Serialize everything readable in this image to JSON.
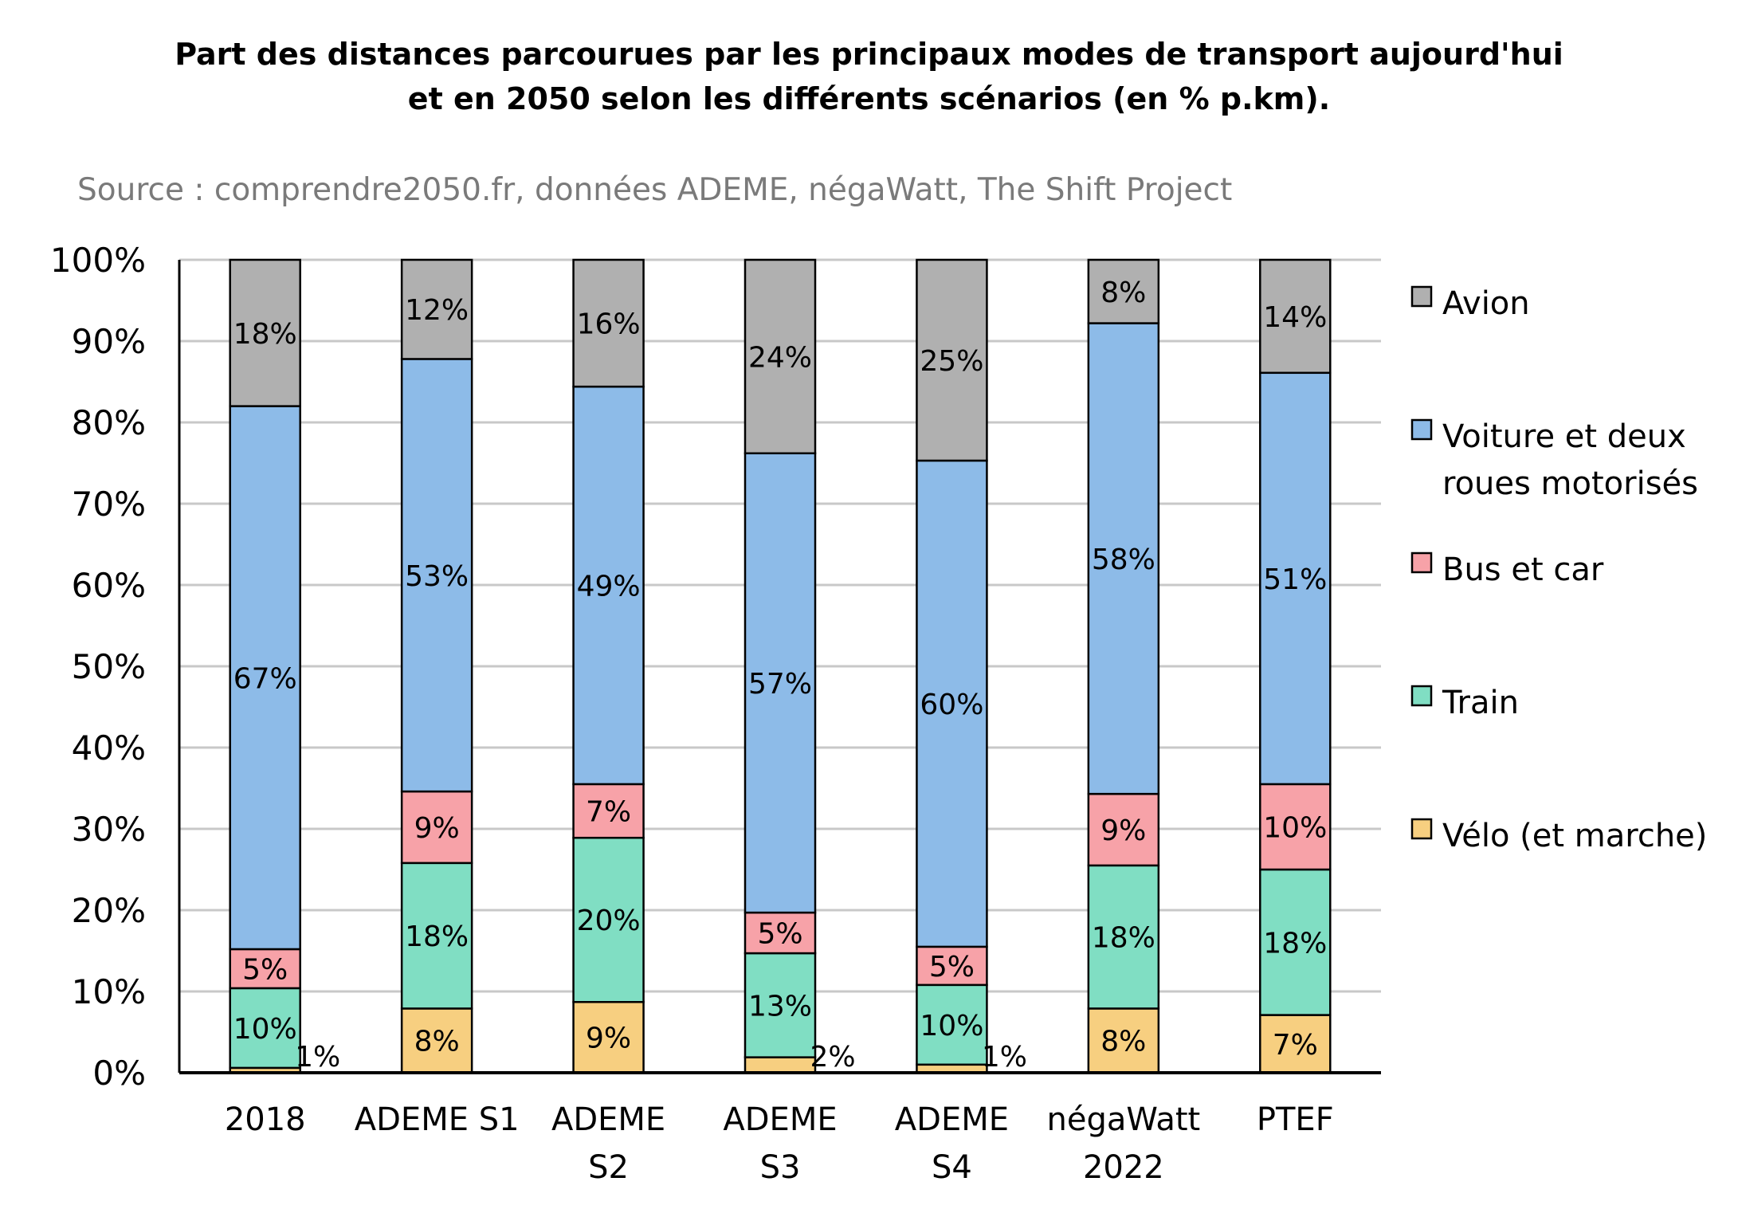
{
  "chart_data": {
    "type": "bar",
    "stacked": true,
    "title_lines": [
      "Part des distances parcourues par les principaux modes de transport aujourd'hui",
      "et en 2050 selon les différents scénarios (en % p.km)."
    ],
    "source": "Source : comprendre2050.fr, données ADEME, négaWatt, The Shift Project",
    "categories": [
      [
        "2018"
      ],
      [
        "ADEME S1"
      ],
      [
        "ADEME",
        "S2"
      ],
      [
        "ADEME",
        "S3"
      ],
      [
        "ADEME",
        "S4"
      ],
      [
        "négaWatt",
        "2022"
      ],
      [
        "PTEF"
      ]
    ],
    "ylim": [
      0,
      100
    ],
    "yticks": [
      0,
      10,
      20,
      30,
      40,
      50,
      60,
      70,
      80,
      90,
      100
    ],
    "ytick_labels": [
      "0%",
      "10%",
      "20%",
      "30%",
      "40%",
      "50%",
      "60%",
      "70%",
      "80%",
      "90%",
      "100%"
    ],
    "grid": true,
    "legend_position": "right",
    "series": [
      {
        "name": "Vélo (et marche)",
        "color": "#f7cf80",
        "values": [
          0.6,
          7.9,
          8.7,
          1.9,
          1.0,
          7.9,
          7.1
        ],
        "labels": [
          "1%",
          "8%",
          "9%",
          "2%",
          "1%",
          "8%",
          "7%"
        ],
        "label_outside": [
          true,
          false,
          false,
          true,
          true,
          false,
          false
        ]
      },
      {
        "name": "Train",
        "color": "#80dec3",
        "values": [
          9.8,
          17.9,
          20.2,
          12.8,
          9.8,
          17.6,
          17.9
        ],
        "labels": [
          "10%",
          "18%",
          "20%",
          "13%",
          "10%",
          "18%",
          "18%"
        ],
        "label_outside": [
          false,
          false,
          false,
          false,
          false,
          false,
          false
        ]
      },
      {
        "name": "Bus et car",
        "color": "#f7a2a8",
        "values": [
          4.8,
          8.8,
          6.6,
          5.0,
          4.7,
          8.8,
          10.5
        ],
        "labels": [
          "5%",
          "9%",
          "7%",
          "5%",
          "5%",
          "9%",
          "10%"
        ],
        "label_outside": [
          false,
          false,
          false,
          false,
          false,
          false,
          false
        ]
      },
      {
        "name": "Voiture et deux roues motorisés",
        "color": "#8dbbe8",
        "values": [
          66.8,
          53.2,
          48.9,
          56.5,
          59.8,
          57.9,
          50.6
        ],
        "labels": [
          "67%",
          "53%",
          "49%",
          "57%",
          "60%",
          "58%",
          "51%"
        ],
        "label_outside": [
          false,
          false,
          false,
          false,
          false,
          false,
          false
        ]
      },
      {
        "name": "Avion",
        "color": "#b0b0b0",
        "values": [
          18.0,
          12.2,
          15.6,
          23.8,
          24.7,
          7.8,
          13.9
        ],
        "labels": [
          "18%",
          "12%",
          "16%",
          "24%",
          "25%",
          "8%",
          "14%"
        ],
        "label_outside": [
          false,
          false,
          false,
          false,
          false,
          false,
          false
        ]
      }
    ],
    "legend": [
      {
        "lines": [
          "Avion"
        ],
        "color": "#b0b0b0"
      },
      {
        "lines": [
          "Voiture et deux",
          "roues motorisés"
        ],
        "color": "#8dbbe8"
      },
      {
        "lines": [
          "Bus et car"
        ],
        "color": "#f7a2a8"
      },
      {
        "lines": [
          "Train"
        ],
        "color": "#80dec3"
      },
      {
        "lines": [
          "Vélo (et marche)"
        ],
        "color": "#f7cf80"
      }
    ]
  }
}
